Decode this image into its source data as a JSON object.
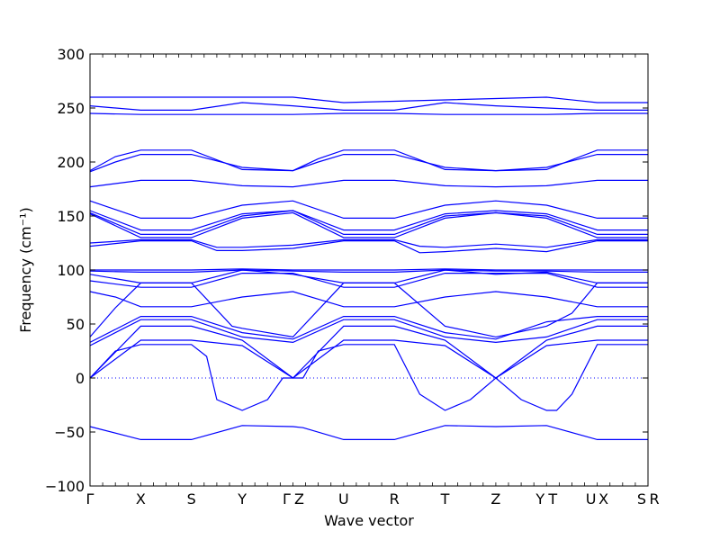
{
  "chart_data": {
    "type": "line",
    "xlabel": "Wave vector",
    "ylabel": "Frequency (cm⁻¹)",
    "ylim": [
      -100,
      300
    ],
    "y_ticks": [
      "−100",
      "−50",
      "0",
      "50",
      "100",
      "150",
      "200",
      "250",
      "300"
    ],
    "y_tick_values": [
      -100,
      -50,
      0,
      50,
      100,
      150,
      200,
      250,
      300
    ],
    "high_symmetry_points": [
      {
        "label": "Γ",
        "x": 0
      },
      {
        "label": "X",
        "x": 1
      },
      {
        "label": "S",
        "x": 2
      },
      {
        "label": "Y",
        "x": 3
      },
      {
        "label": "Γ",
        "x": 4
      },
      {
        "label": "Z",
        "x": 4
      },
      {
        "label": "U",
        "x": 5
      },
      {
        "label": "R",
        "x": 6
      },
      {
        "label": "T",
        "x": 7
      },
      {
        "label": "Z",
        "x": 8
      },
      {
        "label": "Y",
        "x": 9
      },
      {
        "label": "T",
        "x": 9
      },
      {
        "label": "U",
        "x": 10
      },
      {
        "label": "X",
        "x": 10
      },
      {
        "label": "S",
        "x": 11
      },
      {
        "label": "R",
        "x": 11
      }
    ],
    "line_color": "#0000ff",
    "zero_line": {
      "y": 0,
      "style": "dotted"
    },
    "series": [
      {
        "x": [
          0,
          4,
          5,
          9,
          10,
          11
        ],
        "y": [
          260,
          260,
          255,
          260,
          255,
          255
        ]
      },
      {
        "x": [
          0,
          1,
          2,
          3,
          4,
          4.5,
          5,
          6,
          7,
          8,
          9,
          10,
          11
        ],
        "y": [
          252,
          248,
          248,
          255,
          252,
          250,
          248,
          248,
          255,
          252,
          250,
          248,
          248
        ]
      },
      {
        "x": [
          0,
          1,
          2,
          3,
          4,
          5,
          6,
          7,
          8,
          9,
          10,
          11
        ],
        "y": [
          245,
          244,
          244,
          244,
          244,
          245,
          245,
          244,
          244,
          244,
          245,
          245
        ]
      },
      {
        "x": [
          0,
          0.5,
          1,
          2,
          3,
          4,
          4.5,
          5,
          6,
          7,
          8,
          9,
          10,
          11
        ],
        "y": [
          192,
          205,
          211,
          211,
          193,
          192,
          203,
          211,
          211,
          193,
          192,
          193,
          211,
          211
        ]
      },
      {
        "x": [
          0,
          0.5,
          1,
          2,
          3,
          4,
          4.5,
          5,
          6,
          7,
          8,
          9,
          10,
          11
        ],
        "y": [
          191,
          200,
          207,
          207,
          195,
          192,
          200,
          207,
          207,
          195,
          192,
          195,
          207,
          207
        ]
      },
      {
        "x": [
          0,
          1,
          2,
          3,
          4,
          5,
          6,
          7,
          8,
          9,
          10,
          11
        ],
        "y": [
          177,
          183,
          183,
          178,
          177,
          183,
          183,
          178,
          177,
          178,
          183,
          183
        ]
      },
      {
        "x": [
          0,
          1,
          2,
          3,
          4,
          5,
          6,
          7,
          8,
          9,
          10,
          11
        ],
        "y": [
          164,
          148,
          148,
          160,
          164,
          148,
          148,
          160,
          164,
          160,
          148,
          148
        ]
      },
      {
        "x": [
          0,
          1,
          2,
          3,
          4,
          5,
          6,
          7,
          8,
          9,
          10,
          11
        ],
        "y": [
          155,
          137,
          137,
          152,
          155,
          137,
          137,
          152,
          155,
          152,
          137,
          137
        ]
      },
      {
        "x": [
          0,
          1,
          2,
          3,
          4,
          5,
          6,
          7,
          8,
          9,
          10,
          11
        ],
        "y": [
          153,
          133,
          133,
          150,
          155,
          133,
          133,
          150,
          153,
          150,
          133,
          133
        ]
      },
      {
        "x": [
          0,
          1,
          2,
          3,
          4,
          5,
          6,
          7,
          8,
          9,
          10,
          11
        ],
        "y": [
          152,
          130,
          130,
          148,
          153,
          130,
          130,
          148,
          153,
          148,
          130,
          130
        ]
      },
      {
        "x": [
          0,
          1,
          2,
          2.5,
          3,
          4,
          5,
          6,
          6.5,
          7,
          8,
          9,
          10,
          11
        ],
        "y": [
          125,
          128,
          128,
          121,
          121,
          123,
          128,
          128,
          122,
          121,
          124,
          121,
          128,
          128
        ]
      },
      {
        "x": [
          0,
          1,
          2,
          2.5,
          3,
          4,
          5,
          6,
          6.5,
          7,
          8,
          9,
          10,
          11
        ],
        "y": [
          122,
          127,
          127,
          118,
          118,
          120,
          127,
          127,
          116,
          117,
          120,
          117,
          127,
          127
        ]
      },
      {
        "x": [
          0,
          1,
          2,
          3,
          4,
          5,
          6,
          7,
          8,
          9,
          10,
          11
        ],
        "y": [
          100,
          100,
          100,
          101,
          100,
          100,
          100,
          101,
          100,
          100,
          100,
          100
        ]
      },
      {
        "x": [
          0,
          1,
          2,
          3,
          4,
          5,
          6,
          7,
          8,
          9,
          10,
          11
        ],
        "y": [
          99,
          98,
          98,
          100,
          99,
          98,
          98,
          100,
          99,
          99,
          98,
          98
        ]
      },
      {
        "x": [
          0,
          0.5,
          1,
          2,
          3,
          4,
          5,
          6,
          7,
          8,
          9,
          10,
          11
        ],
        "y": [
          96,
          92,
          88,
          88,
          100,
          96,
          88,
          88,
          100,
          96,
          98,
          88,
          88
        ]
      },
      {
        "x": [
          0,
          1,
          2,
          3,
          4,
          5,
          6,
          7,
          8,
          9,
          10,
          11
        ],
        "y": [
          90,
          84,
          84,
          97,
          97,
          84,
          84,
          97,
          97,
          97,
          84,
          84
        ]
      },
      {
        "x": [
          0,
          0.5,
          1,
          2,
          3,
          4,
          5,
          6,
          7,
          8,
          9,
          10,
          11
        ],
        "y": [
          80,
          75,
          66,
          66,
          75,
          80,
          66,
          66,
          75,
          80,
          75,
          66,
          66
        ]
      },
      {
        "x": [
          0,
          0.5,
          1,
          2,
          2.8,
          3,
          4,
          5,
          6,
          7,
          8,
          9,
          9.5,
          10,
          11
        ],
        "y": [
          38,
          65,
          88,
          88,
          48,
          46,
          38,
          88,
          88,
          48,
          38,
          48,
          60,
          88,
          88
        ]
      },
      {
        "x": [
          0,
          1,
          2,
          3,
          4,
          5,
          6,
          7,
          8,
          9,
          10,
          11
        ],
        "y": [
          33,
          57,
          57,
          42,
          36,
          57,
          57,
          42,
          36,
          52,
          57,
          57
        ]
      },
      {
        "x": [
          0,
          1,
          2,
          3,
          4,
          5,
          6,
          7,
          8,
          9,
          10,
          11
        ],
        "y": [
          30,
          54,
          54,
          38,
          33,
          54,
          54,
          38,
          33,
          38,
          54,
          54
        ]
      },
      {
        "x": [
          0,
          1,
          2,
          3,
          4,
          5,
          6,
          7,
          8,
          9,
          10,
          11
        ],
        "y": [
          0,
          48,
          48,
          35,
          0,
          48,
          48,
          35,
          0,
          35,
          48,
          48
        ]
      },
      {
        "x": [
          0,
          1,
          2,
          3,
          4,
          5,
          6,
          7,
          8,
          9,
          10,
          11
        ],
        "y": [
          0,
          35,
          35,
          30,
          0,
          35,
          35,
          30,
          0,
          30,
          35,
          35
        ]
      },
      {
        "x": [
          0,
          0.5,
          1,
          2,
          2.3,
          2.5,
          3,
          3.5,
          3.8,
          4,
          4.2,
          4.5,
          5,
          6,
          6.5,
          7,
          7.5,
          8,
          8.5,
          9,
          9.2,
          9.5,
          10,
          11
        ],
        "y": [
          0,
          25,
          31,
          31,
          20,
          -20,
          -30,
          -20,
          0,
          0,
          0,
          25,
          31,
          31,
          -15,
          -30,
          -20,
          0,
          -20,
          -30,
          -30,
          -15,
          31,
          31
        ]
      },
      {
        "x": [
          0,
          1,
          2,
          3,
          4,
          4.2,
          5,
          6,
          7,
          8,
          9,
          10,
          11
        ],
        "y": [
          -45,
          -57,
          -57,
          -44,
          -45,
          -46,
          -57,
          -57,
          -44,
          -45,
          -44,
          -57,
          -57
        ]
      }
    ]
  }
}
